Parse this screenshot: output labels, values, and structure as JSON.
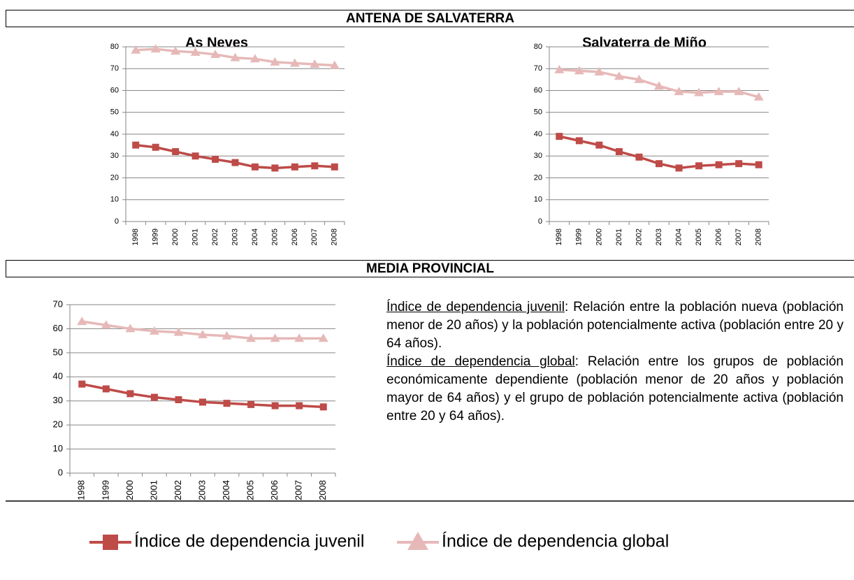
{
  "sections": [
    "ANTENA DE SALVATERRA",
    "MEDIA PROVINCIAL"
  ],
  "chart_data": [
    {
      "type": "line",
      "title": "As Neves",
      "categories": [
        "1998",
        "1999",
        "2000",
        "2001",
        "2002",
        "2003",
        "2004",
        "2005",
        "2006",
        "2007",
        "2008"
      ],
      "series": [
        {
          "name": "Índice de dependencia juvenil",
          "color": "#be4b48",
          "values": [
            35,
            34,
            32,
            30,
            28.5,
            27,
            25,
            24.5,
            25,
            25.5,
            25
          ]
        },
        {
          "name": "Índice de dependencia global",
          "color": "#e6b9b8",
          "values": [
            78.5,
            79,
            78,
            77.5,
            76.5,
            75,
            74.5,
            73,
            72.5,
            72,
            71.5
          ]
        }
      ],
      "ylim": [
        0,
        80
      ],
      "yticks": [
        0,
        10,
        20,
        30,
        40,
        50,
        60,
        70,
        80
      ],
      "grid": true
    },
    {
      "type": "line",
      "title": "Salvaterra de Miño",
      "categories": [
        "1998",
        "1999",
        "2000",
        "2001",
        "2002",
        "2003",
        "2004",
        "2005",
        "2006",
        "2007",
        "2008"
      ],
      "series": [
        {
          "name": "Índice de dependencia juvenil",
          "color": "#be4b48",
          "values": [
            39,
            37,
            35,
            32,
            29.5,
            26.5,
            24.5,
            25.5,
            26,
            26.5,
            26
          ]
        },
        {
          "name": "Índice de dependencia global",
          "color": "#e6b9b8",
          "values": [
            69.5,
            69,
            68.5,
            66.5,
            65,
            62,
            59.5,
            59,
            59.5,
            59.5,
            57
          ]
        }
      ],
      "ylim": [
        0,
        80
      ],
      "yticks": [
        0,
        10,
        20,
        30,
        40,
        50,
        60,
        70,
        80
      ],
      "grid": true
    },
    {
      "type": "line",
      "categories": [
        "1998",
        "1999",
        "2000",
        "2001",
        "2002",
        "2003",
        "2004",
        "2005",
        "2006",
        "2007",
        "2008"
      ],
      "series": [
        {
          "name": "Índice de dependencia juvenil",
          "color": "#be4b48",
          "values": [
            37,
            35,
            33,
            31.5,
            30.5,
            29.5,
            29,
            28.5,
            28,
            28,
            27.5
          ]
        },
        {
          "name": "Índice de dependencia global",
          "color": "#e6b9b8",
          "values": [
            63,
            61.5,
            60,
            59,
            58.5,
            57.5,
            57,
            56,
            56,
            56,
            56
          ]
        }
      ],
      "ylim": [
        0,
        70
      ],
      "yticks": [
        0,
        10,
        20,
        30,
        40,
        50,
        60,
        70
      ],
      "grid": true
    }
  ],
  "definitions": [
    {
      "term": "Índice de dependencia juvenil",
      "text": ": Relación entre la población nueva (población menor de 20 años) y la población potencialmente activa (población entre 20 y 64 años)."
    },
    {
      "term": "Índice de dependencia global",
      "text": ": Relación entre los grupos de población económicamente dependiente (población menor de 20 años y población mayor de 64 años) y el grupo de población potencialmente activa (población entre 20 y 64 años)."
    }
  ]
}
